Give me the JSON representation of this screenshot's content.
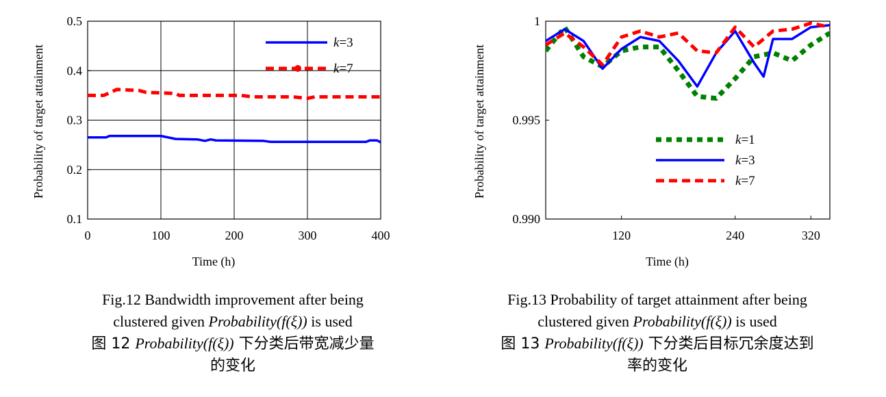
{
  "chart_data": [
    {
      "type": "line",
      "xlabel": "Time (h)",
      "ylabel": "Probability of target attainment",
      "xlim": [
        0,
        400
      ],
      "ylim": [
        0.1,
        0.5
      ],
      "xticks": [
        0,
        100,
        200,
        300,
        400
      ],
      "yticks": [
        0.1,
        0.2,
        0.3,
        0.4,
        0.5
      ],
      "xtick_labels": [
        "0",
        "100",
        "200",
        "300",
        "400"
      ],
      "ytick_labels": [
        "0.1",
        "0.2",
        "0.3",
        "0.4",
        "0.5"
      ],
      "grid": true,
      "legend_position": "top-right",
      "series": [
        {
          "name": "k=3",
          "legend_prefix": "k",
          "legend_suffix": "=3",
          "color": "#0000ff",
          "style": "solid",
          "x": [
            0,
            25,
            30,
            100,
            120,
            150,
            160,
            168,
            175,
            240,
            250,
            380,
            385,
            395,
            400
          ],
          "y": [
            0.265,
            0.265,
            0.268,
            0.268,
            0.262,
            0.261,
            0.258,
            0.261,
            0.259,
            0.258,
            0.256,
            0.256,
            0.259,
            0.259,
            0.255
          ]
        },
        {
          "name": "k=7",
          "legend_prefix": "k",
          "legend_suffix": "=7",
          "color": "#ff0000",
          "style": "dashed",
          "x": [
            0,
            22,
            40,
            70,
            80,
            120,
            125,
            210,
            225,
            240,
            280,
            300,
            310,
            400
          ],
          "y": [
            0.35,
            0.35,
            0.362,
            0.36,
            0.356,
            0.354,
            0.35,
            0.35,
            0.347,
            0.347,
            0.347,
            0.344,
            0.347,
            0.347
          ]
        }
      ]
    },
    {
      "type": "line",
      "xlabel": "Time (h)",
      "ylabel": "Probability of target attainment",
      "xlim": [
        40,
        340
      ],
      "ylim": [
        0.99,
        1.0
      ],
      "xticks": [
        120,
        240,
        320
      ],
      "yticks": [
        0.99,
        0.995,
        1.0
      ],
      "xtick_labels": [
        "120",
        "240",
        "320"
      ],
      "ytick_labels": [
        "0.990",
        "0.995",
        "1"
      ],
      "grid": false,
      "legend_position": "center",
      "series": [
        {
          "name": "k=1",
          "legend_prefix": "k",
          "legend_suffix": "=1",
          "color": "#008000",
          "style": "dotted",
          "x": [
            40,
            60,
            80,
            100,
            120,
            140,
            160,
            180,
            200,
            220,
            240,
            260,
            280,
            300,
            320,
            340
          ],
          "y": [
            0.9985,
            0.9997,
            0.9982,
            0.9977,
            0.9985,
            0.9987,
            0.9987,
            0.9975,
            0.9962,
            0.9961,
            0.9971,
            0.9982,
            0.9984,
            0.998,
            0.9988,
            0.9994
          ]
        },
        {
          "name": "k=3",
          "legend_prefix": "k",
          "legend_suffix": "=3",
          "color": "#0000ff",
          "style": "solid",
          "x": [
            40,
            60,
            80,
            100,
            120,
            140,
            160,
            180,
            200,
            220,
            240,
            260,
            270,
            280,
            300,
            320,
            340
          ],
          "y": [
            0.999,
            0.9996,
            0.999,
            0.9976,
            0.9986,
            0.9992,
            0.999,
            0.998,
            0.9967,
            0.9984,
            0.9995,
            0.9979,
            0.9972,
            0.9991,
            0.9991,
            0.9997,
            0.9998
          ]
        },
        {
          "name": "k=7",
          "legend_prefix": "k",
          "legend_suffix": "=7",
          "color": "#ff0000",
          "style": "dashed",
          "x": [
            40,
            60,
            80,
            100,
            120,
            140,
            160,
            180,
            200,
            220,
            240,
            260,
            280,
            300,
            320,
            340
          ],
          "y": [
            0.9988,
            0.9994,
            0.9987,
            0.9978,
            0.9992,
            0.9995,
            0.9992,
            0.9994,
            0.9985,
            0.9984,
            0.9997,
            0.9987,
            0.9995,
            0.9996,
            0.9999,
            0.9997
          ]
        }
      ]
    }
  ],
  "captions": {
    "fig12": {
      "en_line1": "Fig.12    Bandwidth improvement after being",
      "en_line2_pre": "clustered given ",
      "en_line2_math": "Probability(f(ξ))",
      "en_line2_post": " is used",
      "zh_line1_pre": "图 12    ",
      "zh_line1_math": "Probability(f(ξ))",
      "zh_line1_post": " 下分类后带宽减少量",
      "zh_line2": "的变化"
    },
    "fig13": {
      "en_line1": "Fig.13    Probability of target attainment after being",
      "en_line2_pre": "clustered given ",
      "en_line2_math": "Probability(f(ξ))",
      "en_line2_post": " is used",
      "zh_line1_pre": "图 13    ",
      "zh_line1_math": "Probability(f(ξ))",
      "zh_line1_post": " 下分类后目标冗余度达到",
      "zh_line2": "率的变化"
    }
  }
}
